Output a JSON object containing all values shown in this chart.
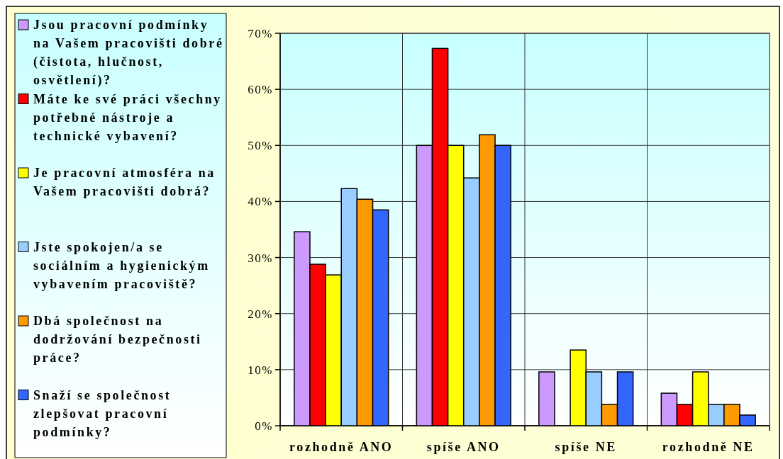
{
  "chart_data": {
    "type": "bar",
    "categories": [
      "rozhodně ANO",
      "spíše ANO",
      "spíše NE",
      "rozhodně NE"
    ],
    "series": [
      {
        "name": "Jsou pracovní podmínky na Vašem pracovišti dobré (čistota, hlučnost, osvětlení)?",
        "color": "#cc99ff",
        "values": [
          34.6,
          50.0,
          9.6,
          5.8
        ]
      },
      {
        "name": "Máte ke své práci všechny potřebné nástroje a technické vybavení?",
        "color": "#ff0000",
        "values": [
          28.8,
          67.3,
          0,
          3.8
        ]
      },
      {
        "name": "Je pracovní atmosféra na Vašem pracovišti dobrá?",
        "color": "#ffff00",
        "values": [
          26.9,
          50.0,
          13.5,
          9.6
        ]
      },
      {
        "name": "Jste spokojen/a se sociálním a hygienickým vybavením pracoviště?",
        "color": "#99ccff",
        "values": [
          42.3,
          44.2,
          9.6,
          3.8
        ]
      },
      {
        "name": "Dbá společnost na dodržování bezpečnosti práce?",
        "color": "#ff9900",
        "values": [
          40.4,
          51.9,
          3.8,
          3.8
        ]
      },
      {
        "name": "Snaží se společnost zlepšovat pracovní podmínky?",
        "color": "#3366ff",
        "values": [
          38.5,
          50.0,
          9.6,
          1.9
        ]
      }
    ],
    "ylim": [
      0,
      70
    ],
    "yticks": [
      {
        "value": 0,
        "label": "0%"
      },
      {
        "value": 10,
        "label": "10%"
      },
      {
        "value": 20,
        "label": "20%"
      },
      {
        "value": 30,
        "label": "30%"
      },
      {
        "value": 40,
        "label": "40%"
      },
      {
        "value": 50,
        "label": "50%"
      },
      {
        "value": 60,
        "label": "60%"
      },
      {
        "value": 70,
        "label": "70%"
      }
    ],
    "grid": true,
    "legend": "left"
  }
}
